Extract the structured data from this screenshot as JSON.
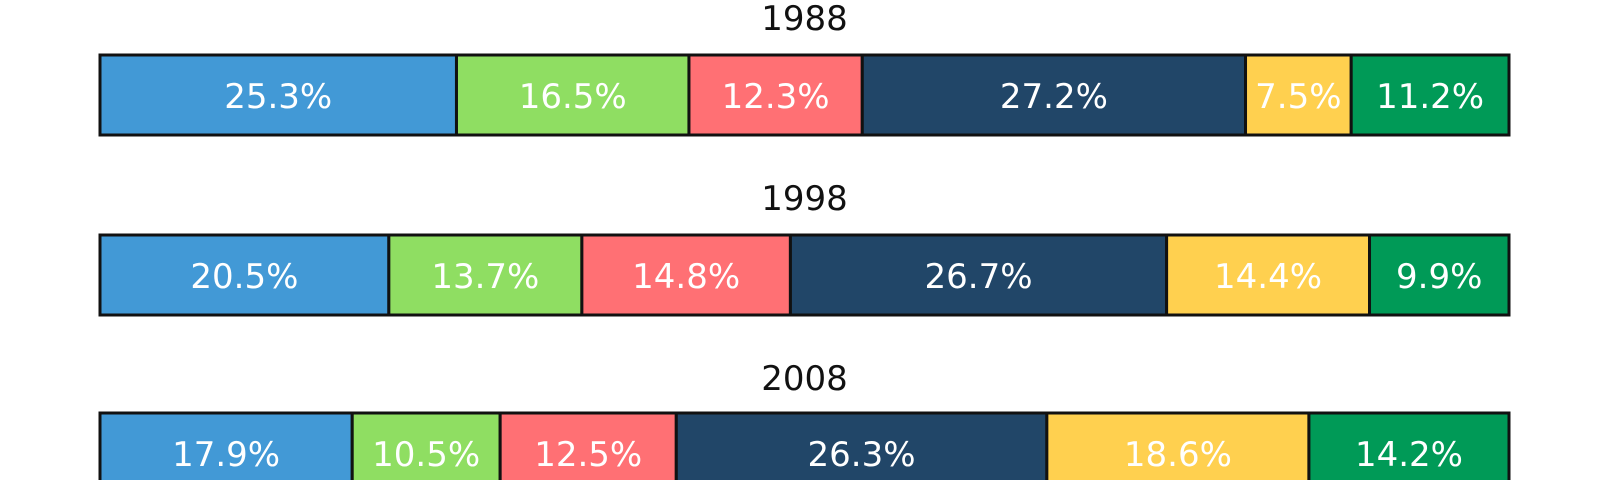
{
  "chart_data": {
    "type": "bar",
    "stacked": "100%",
    "orientation": "horizontal",
    "panels": [
      {
        "title": "1988",
        "values": [
          25.3,
          16.5,
          12.3,
          27.2,
          7.5,
          11.2
        ],
        "labels": [
          "25.3%",
          "16.5%",
          "12.3%",
          "27.2%",
          "7.5%",
          "11.2%"
        ]
      },
      {
        "title": "1998",
        "values": [
          20.5,
          13.7,
          14.8,
          26.7,
          14.4,
          9.9
        ],
        "labels": [
          "20.5%",
          "13.7%",
          "14.8%",
          "26.7%",
          "14.4%",
          "9.9%"
        ]
      },
      {
        "title": "2008",
        "values": [
          17.9,
          10.5,
          12.5,
          26.3,
          18.6,
          14.2
        ],
        "labels": [
          "17.9%",
          "10.5%",
          "12.5%",
          "26.3%",
          "18.6%",
          "14.2%"
        ]
      }
    ],
    "colors": [
      "#4299d6",
      "#8fde62",
      "#ff7074",
      "#214668",
      "#ffd04f",
      "#009a57"
    ],
    "label_color": "#ffffff",
    "border_color": "#111111",
    "grid": false,
    "legend": "none"
  }
}
